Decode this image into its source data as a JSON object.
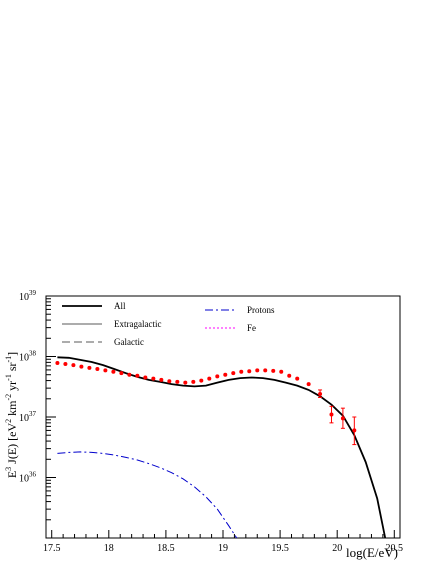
{
  "chart_data": {
    "type": "line",
    "xlabel": "log(E/eV)",
    "ylabel": {
      "parts": [
        "E",
        "3",
        " J(E)  [eV",
        "2",
        " km",
        "-2",
        " yr",
        "-1",
        " sr",
        "-1",
        "]"
      ],
      "super": [
        false,
        true,
        false,
        true,
        false,
        true,
        false,
        true,
        false,
        true,
        false
      ]
    },
    "xlim": [
      17.45,
      20.55
    ],
    "ylim": [
      1e+35,
      1e+39
    ],
    "yscale": "log",
    "x_ticks": [
      "17.5",
      "18",
      "18.5",
      "19",
      "19.5",
      "20",
      "20.5"
    ],
    "x_tick_values": [
      17.5,
      18,
      18.5,
      19,
      19.5,
      20,
      20.5
    ],
    "y_ticks": [
      {
        "value": 1e+36,
        "base": "10",
        "exp": "36"
      },
      {
        "value": 1e+37,
        "base": "10",
        "exp": "37"
      },
      {
        "value": 1e+38,
        "base": "10",
        "exp": "38"
      },
      {
        "value": 1e+39,
        "base": "10",
        "exp": "39"
      }
    ],
    "grid": false,
    "legend_position": "top-left",
    "series": [
      {
        "name": "All",
        "style": "solid",
        "color": "#000000",
        "x": [
          17.55,
          17.65,
          17.75,
          17.85,
          17.95,
          18.05,
          18.15,
          18.25,
          18.35,
          18.45,
          18.55,
          18.65,
          18.75,
          18.85,
          18.95,
          19.05,
          19.15,
          19.25,
          19.35,
          19.45,
          19.55,
          19.65,
          19.75,
          19.85,
          19.95,
          20.05,
          20.15,
          20.25,
          20.35,
          20.42
        ],
        "y": [
          9.7e+37,
          9.5e+37,
          8.8e+37,
          8.1e+37,
          7.2e+37,
          6.2e+37,
          5.3e+37,
          4.6e+37,
          4.1e+37,
          3.8e+37,
          3.5e+37,
          3.3e+37,
          3.2e+37,
          3.3e+37,
          3.7e+37,
          4.1e+37,
          4.4e+37,
          4.5e+37,
          4.4e+37,
          4.1e+37,
          3.7e+37,
          3.3e+37,
          2.8e+37,
          2.2e+37,
          1.6e+37,
          1.05e+37,
          5e+36,
          1.8e+36,
          4.5e+35,
          1e+35
        ]
      },
      {
        "name": "Extragalactic",
        "style": "solid",
        "color": "#a0a0a0",
        "x": [],
        "y": []
      },
      {
        "name": "Galactic",
        "style": "dashed",
        "color": "#a0a0a0",
        "x": [],
        "y": []
      },
      {
        "name": "Protons",
        "style": "dashdot",
        "color": "#0000cc",
        "x": [
          17.55,
          17.65,
          17.75,
          17.85,
          17.95,
          18.05,
          18.15,
          18.25,
          18.35,
          18.45,
          18.55,
          18.65,
          18.75,
          18.85,
          18.95,
          19.05,
          19.12,
          19.17
        ],
        "y": [
          2.5e+36,
          2.6e+36,
          2.65e+36,
          2.6e+36,
          2.5e+36,
          2.35e+36,
          2.15e+36,
          1.95e+36,
          1.7e+36,
          1.45e+36,
          1.2e+36,
          9.5e+35,
          7e+35,
          4.8e+35,
          3e+35,
          1.6e+35,
          1e+35,
          7e+34
        ]
      },
      {
        "name": "Fe",
        "style": "dotted",
        "color": "#ff00ff",
        "x": [],
        "y": []
      }
    ],
    "data_points": {
      "color": "#ff0000",
      "x": [
        17.55,
        17.62,
        17.69,
        17.76,
        17.83,
        17.9,
        17.97,
        18.04,
        18.11,
        18.18,
        18.25,
        18.32,
        18.39,
        18.46,
        18.53,
        18.6,
        18.67,
        18.74,
        18.81,
        18.88,
        18.95,
        19.02,
        19.09,
        19.16,
        19.23,
        19.3,
        19.37,
        19.44,
        19.51,
        19.58,
        19.65,
        19.75,
        19.85,
        19.95,
        20.05,
        20.15
      ],
      "y": [
        7.8e+37,
        7.5e+37,
        7.2e+37,
        6.8e+37,
        6.5e+37,
        6.2e+37,
        5.9e+37,
        5.6e+37,
        5.3e+37,
        5e+37,
        4.8e+37,
        4.5e+37,
        4.3e+37,
        4.1e+37,
        3.9e+37,
        3.8e+37,
        3.7e+37,
        3.8e+37,
        4e+37,
        4.3e+37,
        4.7e+37,
        5e+37,
        5.3e+37,
        5.6e+37,
        5.7e+37,
        5.9e+37,
        5.9e+37,
        5.8e+37,
        5.6e+37,
        4.8e+37,
        4.3e+37,
        3.5e+37,
        2.4e+37,
        1.1e+37,
        9.5e+36,
        6e+36
      ],
      "err_low": [
        null,
        null,
        null,
        null,
        null,
        null,
        null,
        null,
        null,
        null,
        null,
        null,
        null,
        null,
        null,
        null,
        null,
        null,
        null,
        null,
        null,
        null,
        null,
        null,
        null,
        null,
        null,
        null,
        null,
        null,
        null,
        null,
        2.1e+37,
        8e+36,
        6.5e+36,
        3.5e+36
      ],
      "err_high": [
        null,
        null,
        null,
        null,
        null,
        null,
        null,
        null,
        null,
        null,
        null,
        null,
        null,
        null,
        null,
        null,
        null,
        null,
        null,
        null,
        null,
        null,
        null,
        null,
        null,
        null,
        null,
        null,
        null,
        null,
        null,
        null,
        2.8e+37,
        1.5e+37,
        1.4e+37,
        1e+37
      ]
    }
  }
}
